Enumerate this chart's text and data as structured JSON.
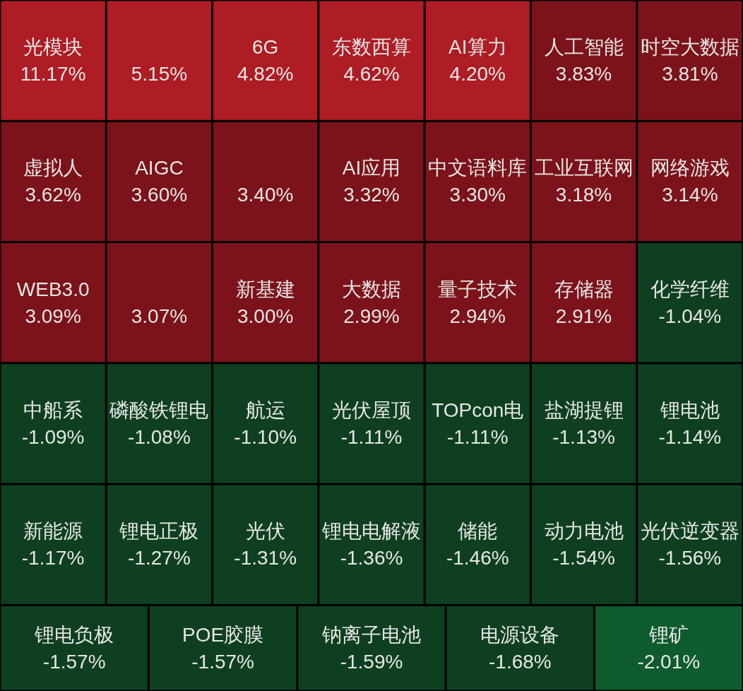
{
  "chart_data": {
    "type": "other",
    "categories": [
      "光模块",
      null,
      "6G",
      "东数西算",
      "AI算力",
      "人工智能",
      "时空大数据",
      "虚拟人",
      "AIGC",
      null,
      "AI应用",
      "中文语料库",
      "工业互联网",
      "网络游戏",
      "WEB3.0",
      null,
      "新基建",
      "大数据",
      "量子技术",
      "存储器",
      "化学纤维",
      "中船系",
      "磷酸铁锂电",
      "航运",
      "光伏屋顶",
      "TOPcon电",
      "盐湖提锂",
      "锂电池",
      "新能源",
      "锂电正极",
      "光伏",
      "锂电电解液",
      "储能",
      "动力电池",
      "光伏逆变器",
      "锂电负极",
      "POE胶膜",
      "钠离子电池",
      "电源设备",
      "锂矿"
    ],
    "values": [
      11.17,
      5.15,
      4.82,
      4.62,
      4.2,
      3.83,
      3.81,
      3.62,
      3.6,
      3.4,
      3.32,
      3.3,
      3.18,
      3.14,
      3.09,
      3.07,
      3.0,
      2.99,
      2.94,
      2.91,
      -1.04,
      -1.09,
      -1.08,
      -1.1,
      -1.11,
      -1.11,
      -1.13,
      -1.14,
      -1.17,
      -1.27,
      -1.31,
      -1.36,
      -1.46,
      -1.54,
      -1.56,
      -1.57,
      -1.57,
      -1.59,
      -1.68,
      -2.01
    ],
    "value_labels": [
      "11.17%",
      "5.15%",
      "4.82%",
      "4.62%",
      "4.20%",
      "3.83%",
      "3.81%",
      "3.62%",
      "3.60%",
      "3.40%",
      "3.32%",
      "3.30%",
      "3.18%",
      "3.14%",
      "3.09%",
      "3.07%",
      "3.00%",
      "2.99%",
      "2.94%",
      "2.91%",
      "-1.04%",
      "-1.09%",
      "-1.08%",
      "-1.10%",
      "-1.11%",
      "-1.11%",
      "-1.13%",
      "-1.14%",
      "-1.17%",
      "-1.27%",
      "-1.31%",
      "-1.36%",
      "-1.46%",
      "-1.54%",
      "-1.56%",
      "-1.57%",
      "-1.57%",
      "-1.59%",
      "-1.68%",
      "-2.01%"
    ],
    "colors": [
      "#ae1c24",
      "#ae1c24",
      "#ae1c24",
      "#ae1c24",
      "#ae1c24",
      "#7c131a",
      "#7c131a",
      "#7c131a",
      "#7c131a",
      "#7c131a",
      "#7c131a",
      "#7c131a",
      "#7c131a",
      "#7c131a",
      "#7c131a",
      "#7c131a",
      "#7c131a",
      "#7c131a",
      "#7c131a",
      "#7c131a",
      "#0f3f21",
      "#0f3f21",
      "#0f3f21",
      "#0f3f21",
      "#0f3f21",
      "#0f3f21",
      "#0f3f21",
      "#0f3f21",
      "#0f3f21",
      "#0f3f21",
      "#0f3f21",
      "#0f3f21",
      "#0f3f21",
      "#0f3f21",
      "#0f3f21",
      "#0f3f21",
      "#0f3f21",
      "#0f3f21",
      "#0f3f21",
      "#0e5c2d"
    ]
  }
}
